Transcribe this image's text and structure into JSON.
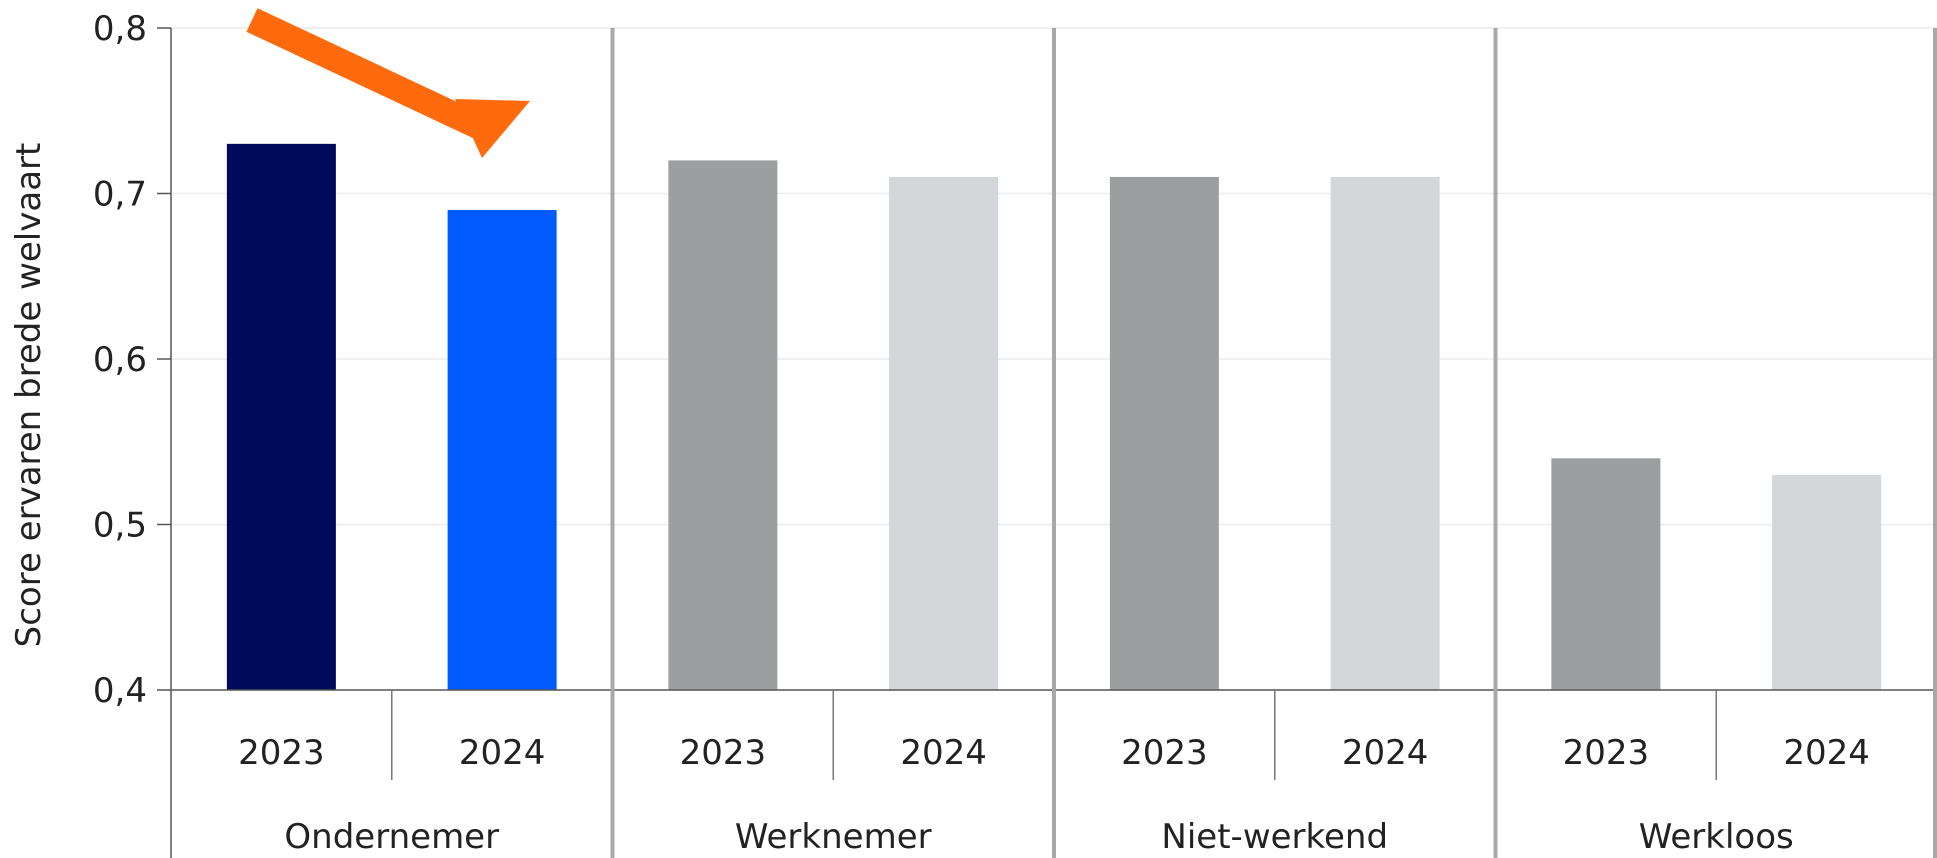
{
  "chart_data": {
    "type": "bar",
    "title": "",
    "xlabel": "",
    "ylabel": "Score ervaren brede welvaart",
    "ylim": [
      0.4,
      0.8
    ],
    "yticks": [
      "0,4",
      "0,5",
      "0,6",
      "0,7",
      "0,8"
    ],
    "grid": true,
    "groups": [
      {
        "name": "Ondernemer",
        "bars": [
          {
            "year": "2023",
            "value": 0.73,
            "color": "#000a5a"
          },
          {
            "year": "2024",
            "value": 0.69,
            "color": "#005aff"
          }
        ]
      },
      {
        "name": "Werknemer",
        "bars": [
          {
            "year": "2023",
            "value": 0.72,
            "color": "#9d9e9f"
          },
          {
            "year": "2024",
            "value": 0.71,
            "color": "#d4d7da"
          }
        ]
      },
      {
        "name": "Niet-werkend",
        "bars": [
          {
            "year": "2023",
            "value": 0.71,
            "color": "#9d9e9f"
          },
          {
            "year": "2024",
            "value": 0.71,
            "color": "#d4d7da"
          }
        ]
      },
      {
        "name": "Werkloos",
        "bars": [
          {
            "year": "2023",
            "value": 0.54,
            "color": "#9d9e9f"
          },
          {
            "year": "2024",
            "value": 0.53,
            "color": "#d4d7da"
          }
        ]
      }
    ],
    "annotation": {
      "shape": "arrow",
      "color": "#ff6a0d",
      "points_to": "Ondernemer 2024"
    }
  }
}
